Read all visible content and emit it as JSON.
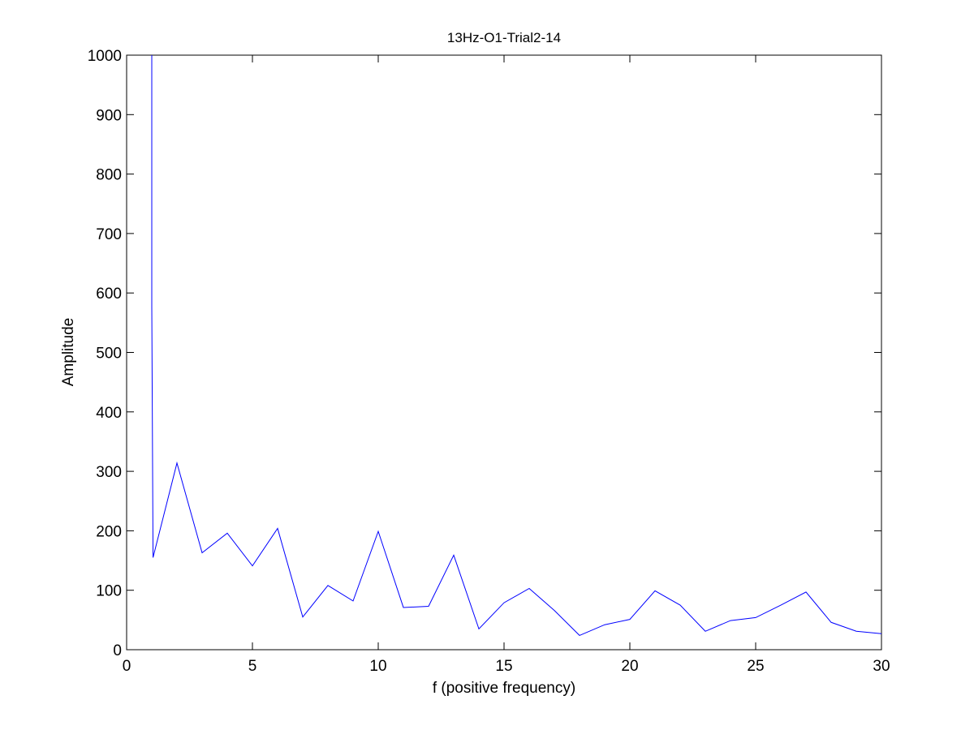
{
  "chart_data": {
    "type": "line",
    "title": "13Hz-O1-Trial2-14",
    "xlabel": "f (positive frequency)",
    "ylabel": "Amplitude",
    "xlim": [
      0,
      30
    ],
    "ylim": [
      0,
      1000
    ],
    "xticks": [
      0,
      5,
      10,
      15,
      20,
      25,
      30
    ],
    "yticks": [
      0,
      100,
      200,
      300,
      400,
      500,
      600,
      700,
      800,
      900,
      1000
    ],
    "grid": false,
    "legend": "none",
    "series": [
      {
        "color": "#0000ff",
        "x": [
          1,
          1,
          1.05,
          2,
          3,
          4,
          5,
          6,
          7,
          8,
          9,
          10,
          11,
          12,
          13,
          14,
          15,
          16,
          17,
          18,
          19,
          20,
          21,
          22,
          23,
          24,
          25,
          26,
          27,
          28,
          29,
          30
        ],
        "y": [
          1000,
          578,
          155,
          314,
          163,
          196,
          141,
          204,
          55,
          108,
          82,
          199,
          71,
          73,
          159,
          35,
          79,
          103,
          66,
          24,
          42,
          51,
          99,
          75,
          31,
          49,
          54,
          75,
          97,
          46,
          31,
          27
        ]
      }
    ]
  }
}
